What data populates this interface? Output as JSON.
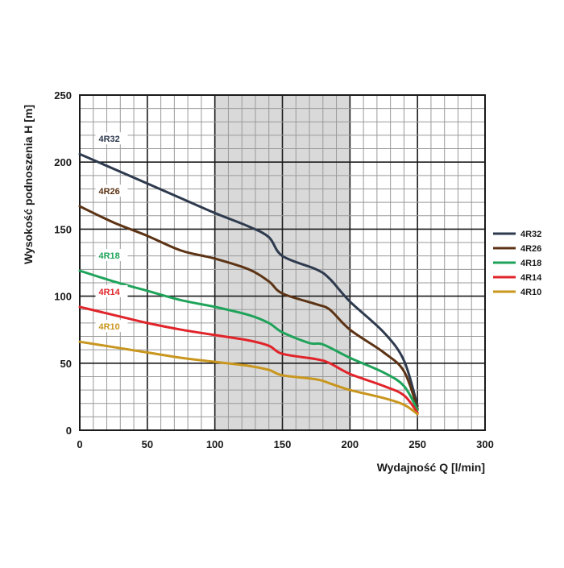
{
  "chart_data": {
    "type": "line",
    "xlabel": "Wydajność Q [l/min]",
    "ylabel": "Wysokość podnoszenia H [m]",
    "xlim": [
      0,
      300
    ],
    "ylim": [
      0,
      250
    ],
    "x_ticks": [
      "0",
      "50",
      "100",
      "150",
      "200",
      "250",
      "300"
    ],
    "y_ticks": [
      "0",
      "50",
      "100",
      "150",
      "200",
      "250"
    ],
    "x_major_step": 50,
    "x_minor_step": 10,
    "y_major_step": 50,
    "y_minor_step": 10,
    "grid": true,
    "shaded_band": [
      100,
      200
    ],
    "shaded_color": "#d9d9d9",
    "legend_position": "right",
    "series": [
      {
        "name": "4R32",
        "color": "#2e3a4e",
        "x": [
          0,
          25,
          50,
          75,
          100,
          125,
          140,
          150,
          175,
          185,
          200,
          225,
          240,
          250
        ],
        "y": [
          206,
          195,
          184,
          173,
          162,
          152,
          144,
          130,
          120,
          113,
          96,
          73,
          52,
          18
        ]
      },
      {
        "name": "4R26",
        "color": "#5c3314",
        "x": [
          0,
          25,
          50,
          75,
          100,
          125,
          140,
          150,
          175,
          185,
          200,
          225,
          240,
          250
        ],
        "y": [
          167,
          155,
          145,
          134,
          128,
          120,
          111,
          102,
          94,
          90,
          75,
          58,
          44,
          16
        ]
      },
      {
        "name": "4R18",
        "color": "#1fa35a",
        "x": [
          0,
          25,
          50,
          75,
          100,
          125,
          140,
          150,
          170,
          180,
          200,
          225,
          240,
          250
        ],
        "y": [
          119,
          111,
          104,
          97,
          92,
          86,
          80,
          73,
          65,
          64,
          54,
          43,
          33,
          15
        ]
      },
      {
        "name": "4R14",
        "color": "#e0242a",
        "x": [
          0,
          25,
          50,
          75,
          100,
          125,
          140,
          150,
          175,
          185,
          200,
          225,
          240,
          250
        ],
        "y": [
          92,
          86,
          80,
          75,
          71,
          67,
          63,
          57,
          53,
          50,
          42,
          33,
          26,
          13
        ]
      },
      {
        "name": "4R10",
        "color": "#c9961e",
        "x": [
          0,
          25,
          50,
          75,
          100,
          125,
          140,
          150,
          175,
          185,
          200,
          225,
          240,
          250
        ],
        "y": [
          66,
          62,
          58,
          54,
          51,
          48,
          45,
          41,
          38,
          35,
          30,
          24,
          19,
          12
        ]
      }
    ]
  }
}
